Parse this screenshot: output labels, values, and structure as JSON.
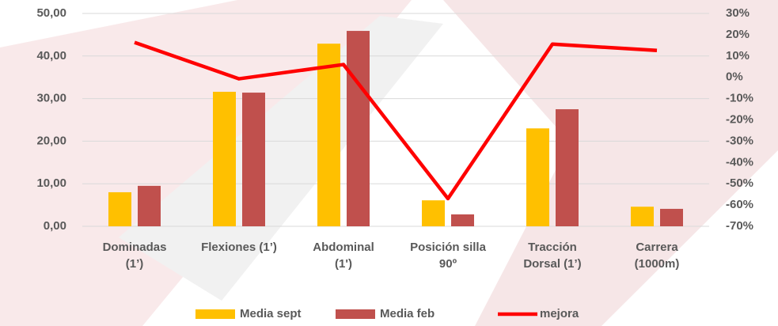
{
  "chart_data": {
    "type": "bar-line",
    "categories": [
      "Dominadas\n(1’)",
      "Flexiones (1’)",
      "Abdominal\n(1')",
      "Posición silla\n90º",
      "Tracción\nDorsal (1’)",
      "Carrera\n(1000m)"
    ],
    "series": [
      {
        "name": "Media sept",
        "color": "#FFC000",
        "values": [
          8.0,
          31.6,
          42.9,
          6.1,
          23.0,
          4.6
        ]
      },
      {
        "name": "Media feb",
        "color": "#C0504D",
        "values": [
          9.5,
          31.4,
          45.9,
          2.8,
          27.5,
          4.1
        ]
      },
      {
        "name": "mejora",
        "color": "#FF0000",
        "axis": "y2",
        "values": [
          16.4,
          -0.7,
          6.0,
          -57.0,
          15.6,
          12.6
        ]
      }
    ],
    "ylim": [
      0,
      50
    ],
    "yticks": [
      {
        "value": 0,
        "label": "0,00"
      },
      {
        "value": 10,
        "label": "10,00"
      },
      {
        "value": 20,
        "label": "20,00"
      },
      {
        "value": 30,
        "label": "30,00"
      },
      {
        "value": 40,
        "label": "40,00"
      },
      {
        "value": 50,
        "label": "50,00"
      }
    ],
    "y2lim": [
      -70,
      30
    ],
    "y2ticks": [
      {
        "value": -70,
        "label": "-70%"
      },
      {
        "value": -60,
        "label": "-60%"
      },
      {
        "value": -50,
        "label": "-50%"
      },
      {
        "value": -40,
        "label": "-40%"
      },
      {
        "value": -30,
        "label": "-30%"
      },
      {
        "value": -20,
        "label": "-20%"
      },
      {
        "value": -10,
        "label": "-10%"
      },
      {
        "value": 0,
        "label": "0%"
      },
      {
        "value": 10,
        "label": "10%"
      },
      {
        "value": 20,
        "label": "20%"
      },
      {
        "value": 30,
        "label": "30%"
      }
    ],
    "grid": true,
    "legend": "bottom"
  }
}
